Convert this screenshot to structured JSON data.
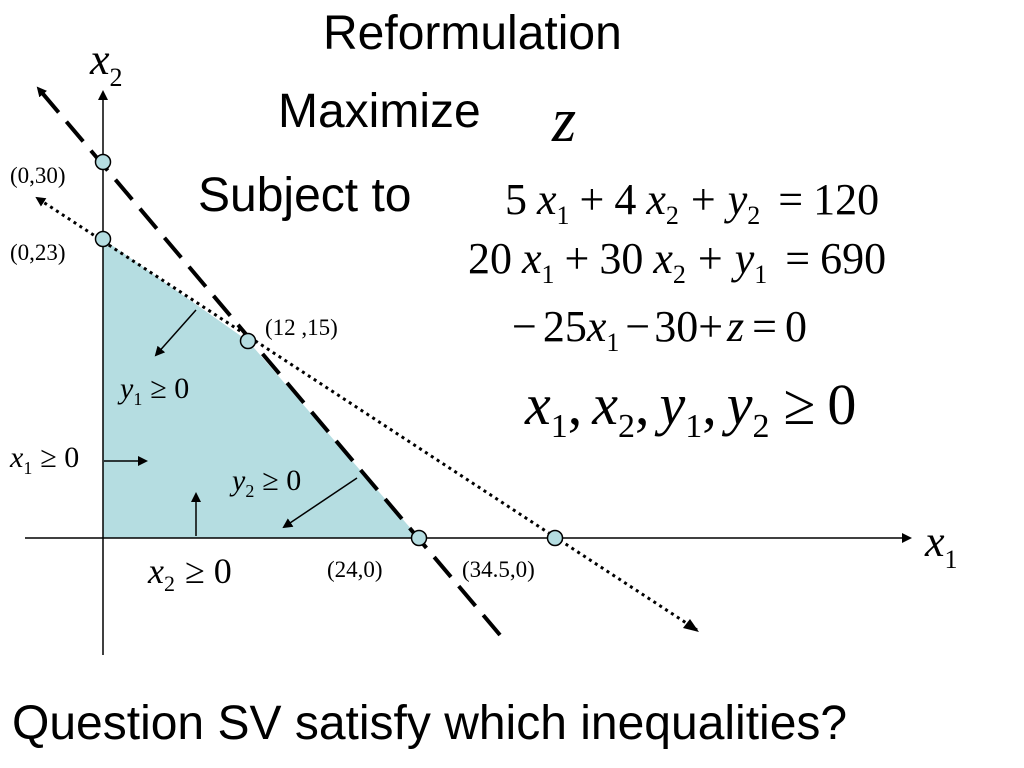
{
  "slide": {
    "title": "Reformulation",
    "objective_label": "Maximize",
    "objective_var": "z",
    "subject_label": "Subject to",
    "question": "Question SV satisfy which inequalities?"
  },
  "equations": {
    "eq1": {
      "c1": "5",
      "v1": "x",
      "s1": "1",
      "op1": "+",
      "c2": "4",
      "v2": "x",
      "s2": "2",
      "op2": "+",
      "v3": "y",
      "s3": "2",
      "eq": "=",
      "rhs": "120"
    },
    "eq2": {
      "c1": "20",
      "v1": "x",
      "s1": "1",
      "op1": "+",
      "c2": "30",
      "v2": "x",
      "s2": "2",
      "op2": "+",
      "v3": "y",
      "s3": "1",
      "eq": "=",
      "rhs": "690"
    },
    "eq3": {
      "op0": "−",
      "c1": "25",
      "v1": "x",
      "s1": "1",
      "op1": "−",
      "c2": "30",
      "op2": "+",
      "v3": "z",
      "eq": "=",
      "rhs": "0"
    },
    "nonneg": {
      "a": "x",
      "as": "1",
      "b": "x",
      "bs": "2",
      "c": "y",
      "cs": "1",
      "d": "y",
      "ds": "2",
      "sep": ",",
      "rel": "≥",
      "rhs": "0"
    }
  },
  "axes": {
    "x_var": "x",
    "x_sub": "1",
    "y_var": "x",
    "y_sub": "2"
  },
  "points": {
    "p0_30": "(0,30)",
    "p0_23": "(0,23)",
    "p12_15": "(12 ,15)",
    "p24_0": "(24,0)",
    "p34_0": "(34.5,0)"
  },
  "region_labels": {
    "y1": {
      "var": "y",
      "sub": "1",
      "rel": "≥ 0"
    },
    "y2": {
      "var": "y",
      "sub": "2",
      "rel": "≥ 0"
    },
    "x1": {
      "var": "x",
      "sub": "1",
      "rel": "≥ 0"
    },
    "x2": {
      "var": "x",
      "sub": "2",
      "rel": "≥ 0"
    }
  },
  "colors": {
    "feasible_region": "#b5dde1",
    "line": "#000000",
    "point_fill": "#b5dde1"
  }
}
